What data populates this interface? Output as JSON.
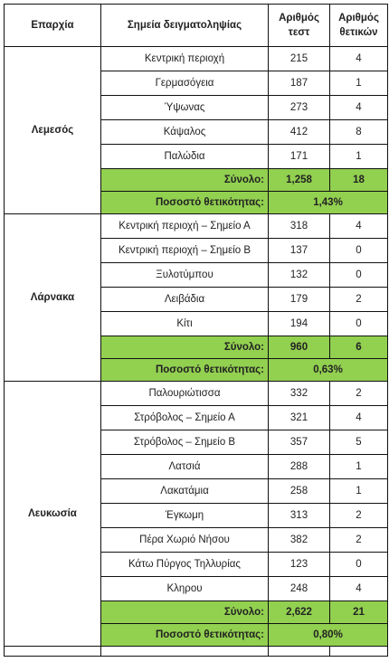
{
  "headers": [
    "Επαρχία",
    "Σημεία δειγματοληψίας",
    "Αριθμός τεστ",
    "Αριθμός θετικών"
  ],
  "regions": [
    {
      "name": "Λεμεσός",
      "rows": [
        {
          "site": "Κεντρική περιοχή",
          "tests": "215",
          "positives": "4"
        },
        {
          "site": "Γερμασόγεια",
          "tests": "187",
          "positives": "1"
        },
        {
          "site": "Ύψωνας",
          "tests": "273",
          "positives": "4"
        },
        {
          "site": "Κάψαλος",
          "tests": "412",
          "positives": "8"
        },
        {
          "site": "Παλώδια",
          "tests": "171",
          "positives": "1"
        }
      ],
      "total_label": "Σύνολο:",
      "total_tests": "1,258",
      "total_positives": "18",
      "rate_label": "Ποσοστό θετικότητας:",
      "rate": "1,43%"
    },
    {
      "name": "Λάρνακα",
      "rows": [
        {
          "site": "Κεντρική περιοχή – Σημείο Α",
          "tests": "318",
          "positives": "4"
        },
        {
          "site": "Κεντρική περιοχή – Σημείο Β",
          "tests": "137",
          "positives": "0"
        },
        {
          "site": "Ξυλοτύμπου",
          "tests": "132",
          "positives": "0"
        },
        {
          "site": "Λειβάδια",
          "tests": "179",
          "positives": "2"
        },
        {
          "site": "Κίτι",
          "tests": "194",
          "positives": "0"
        }
      ],
      "total_label": "Σύνολο:",
      "total_tests": "960",
      "total_positives": "6",
      "rate_label": "Ποσοστό θετικότητας:",
      "rate": "0,63%"
    },
    {
      "name": "Λευκωσία",
      "rows": [
        {
          "site": "Παλουριώτισσα",
          "tests": "332",
          "positives": "2"
        },
        {
          "site": "Στρόβολος – Σημείο Α",
          "tests": "321",
          "positives": "4"
        },
        {
          "site": "Στρόβολος – Σημείο Β",
          "tests": "357",
          "positives": "5"
        },
        {
          "site": "Λατσιά",
          "tests": "288",
          "positives": "1"
        },
        {
          "site": "Λακατάμια",
          "tests": "258",
          "positives": "1"
        },
        {
          "site": "Έγκωμη",
          "tests": "313",
          "positives": "2"
        },
        {
          "site": "Πέρα Χωριό Νήσου",
          "tests": "382",
          "positives": "2"
        },
        {
          "site": "Κάτω Πύργος Τηλλυρίας",
          "tests": "123",
          "positives": "0"
        },
        {
          "site": "Κληρου",
          "tests": "248",
          "positives": "4"
        }
      ],
      "total_label": "Σύνολο:",
      "total_tests": "2,622",
      "total_positives": "21",
      "rate_label": "Ποσοστό θετικότητας:",
      "rate": "0,80%"
    }
  ],
  "colors": {
    "summary_fill": "#92d050",
    "border": "#111111"
  }
}
